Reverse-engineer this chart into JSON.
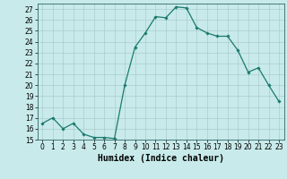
{
  "x": [
    0,
    1,
    2,
    3,
    4,
    5,
    6,
    7,
    8,
    9,
    10,
    11,
    12,
    13,
    14,
    15,
    16,
    17,
    18,
    19,
    20,
    21,
    22,
    23
  ],
  "y": [
    16.5,
    17.0,
    16.0,
    16.5,
    15.5,
    15.2,
    15.2,
    15.1,
    20.0,
    23.5,
    24.8,
    26.3,
    26.2,
    27.2,
    27.1,
    25.3,
    24.8,
    24.5,
    24.5,
    23.2,
    21.2,
    21.6,
    20.0,
    18.5
  ],
  "line_color": "#1a7a6e",
  "marker": "D",
  "marker_size": 1.8,
  "line_width": 0.9,
  "bg_color": "#c8eaea",
  "grid_color": "#aacccc",
  "xlabel": "Humidex (Indice chaleur)",
  "ylim": [
    15,
    27.5
  ],
  "xlim": [
    -0.5,
    23.5
  ],
  "yticks": [
    15,
    16,
    17,
    18,
    19,
    20,
    21,
    22,
    23,
    24,
    25,
    26,
    27
  ],
  "xticks": [
    0,
    1,
    2,
    3,
    4,
    5,
    6,
    7,
    8,
    9,
    10,
    11,
    12,
    13,
    14,
    15,
    16,
    17,
    18,
    19,
    20,
    21,
    22,
    23
  ],
  "tick_label_size": 5.5,
  "xlabel_size": 7.0
}
